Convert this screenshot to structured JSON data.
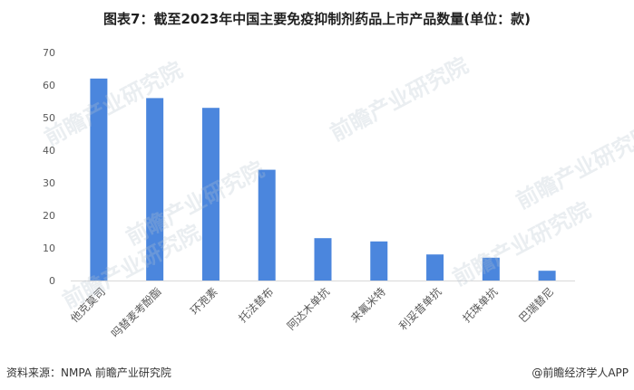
{
  "title": "图表7：截至2023年中国主要免疫抑制剂药品上市产品数量(单位：款)",
  "source": "资料来源：NMPA 前瞻产业研究院",
  "brand": "@前瞻经济学人APP",
  "watermark": "前瞻产业研究院",
  "chart_data": {
    "type": "bar",
    "title": "图表7：截至2023年中国主要免疫抑制剂药品上市产品数量(单位：款)",
    "categories": [
      "他克莫司",
      "吗替麦考酚酯",
      "环孢素",
      "托法替布",
      "阿达木单抗",
      "来氟米特",
      "利妥昔单抗",
      "托珠单抗",
      "巴瑞替尼"
    ],
    "values": [
      62,
      56,
      53,
      34,
      13,
      12,
      8,
      7,
      3
    ],
    "ylim": [
      0,
      70
    ],
    "yticks": [
      0,
      10,
      20,
      30,
      40,
      50,
      60,
      70
    ],
    "grid": false,
    "bar_color": "#4b86dd"
  }
}
